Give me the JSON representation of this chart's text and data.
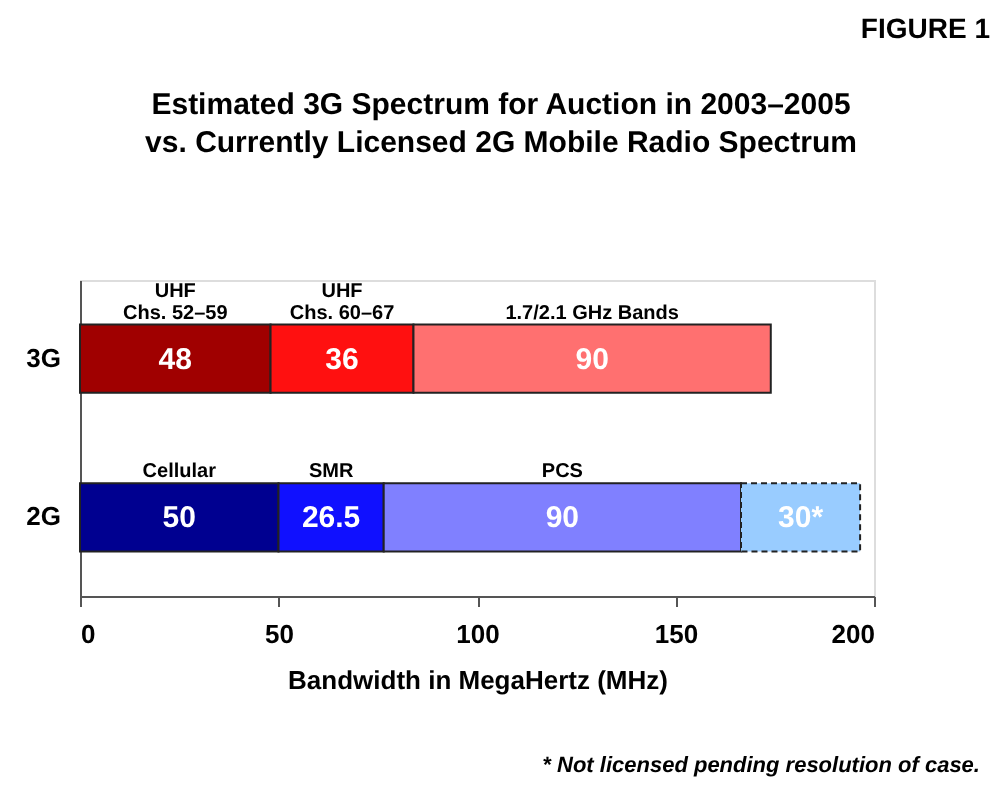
{
  "chart_data": {
    "type": "bar",
    "orientation": "horizontal",
    "stacked": true,
    "title": "Estimated 3G Spectrum for Auction in 2003–2005\nvs. Currently Licensed 2G Mobile Radio Spectrum",
    "xlabel": "Bandwidth in MegaHertz (MHz)",
    "categories": [
      "3G",
      "2G"
    ],
    "series": [
      {
        "colors": [
          "#a00000",
          "#000090"
        ],
        "values": [
          48,
          50
        ],
        "value_labels": [
          "48",
          "50"
        ]
      },
      {
        "colors": [
          "#ff1010",
          "#1010ff"
        ],
        "values": [
          36,
          26.5
        ],
        "value_labels": [
          "36",
          "26.5"
        ]
      },
      {
        "colors": [
          "#ff7070",
          "#8080ff"
        ],
        "values": [
          90,
          90
        ],
        "value_labels": [
          "90",
          "90"
        ]
      },
      {
        "colors": [
          "#ffffff",
          "#99ccff"
        ],
        "values": [
          null,
          30
        ],
        "value_labels": [
          null,
          "30*"
        ],
        "line_style": "dashed"
      }
    ],
    "xlim": [
      0,
      200
    ],
    "xticks": [
      0,
      50,
      100,
      150,
      200
    ],
    "grid": false,
    "legend": false,
    "annotations": [
      "UHF\nChs. 52–59",
      "UHF\nChs. 60–67",
      "1.7/2.1 GHz Bands",
      "Cellular",
      "SMR",
      "PCS",
      "FIGURE 1",
      "* Not licensed pending resolution of case."
    ]
  }
}
